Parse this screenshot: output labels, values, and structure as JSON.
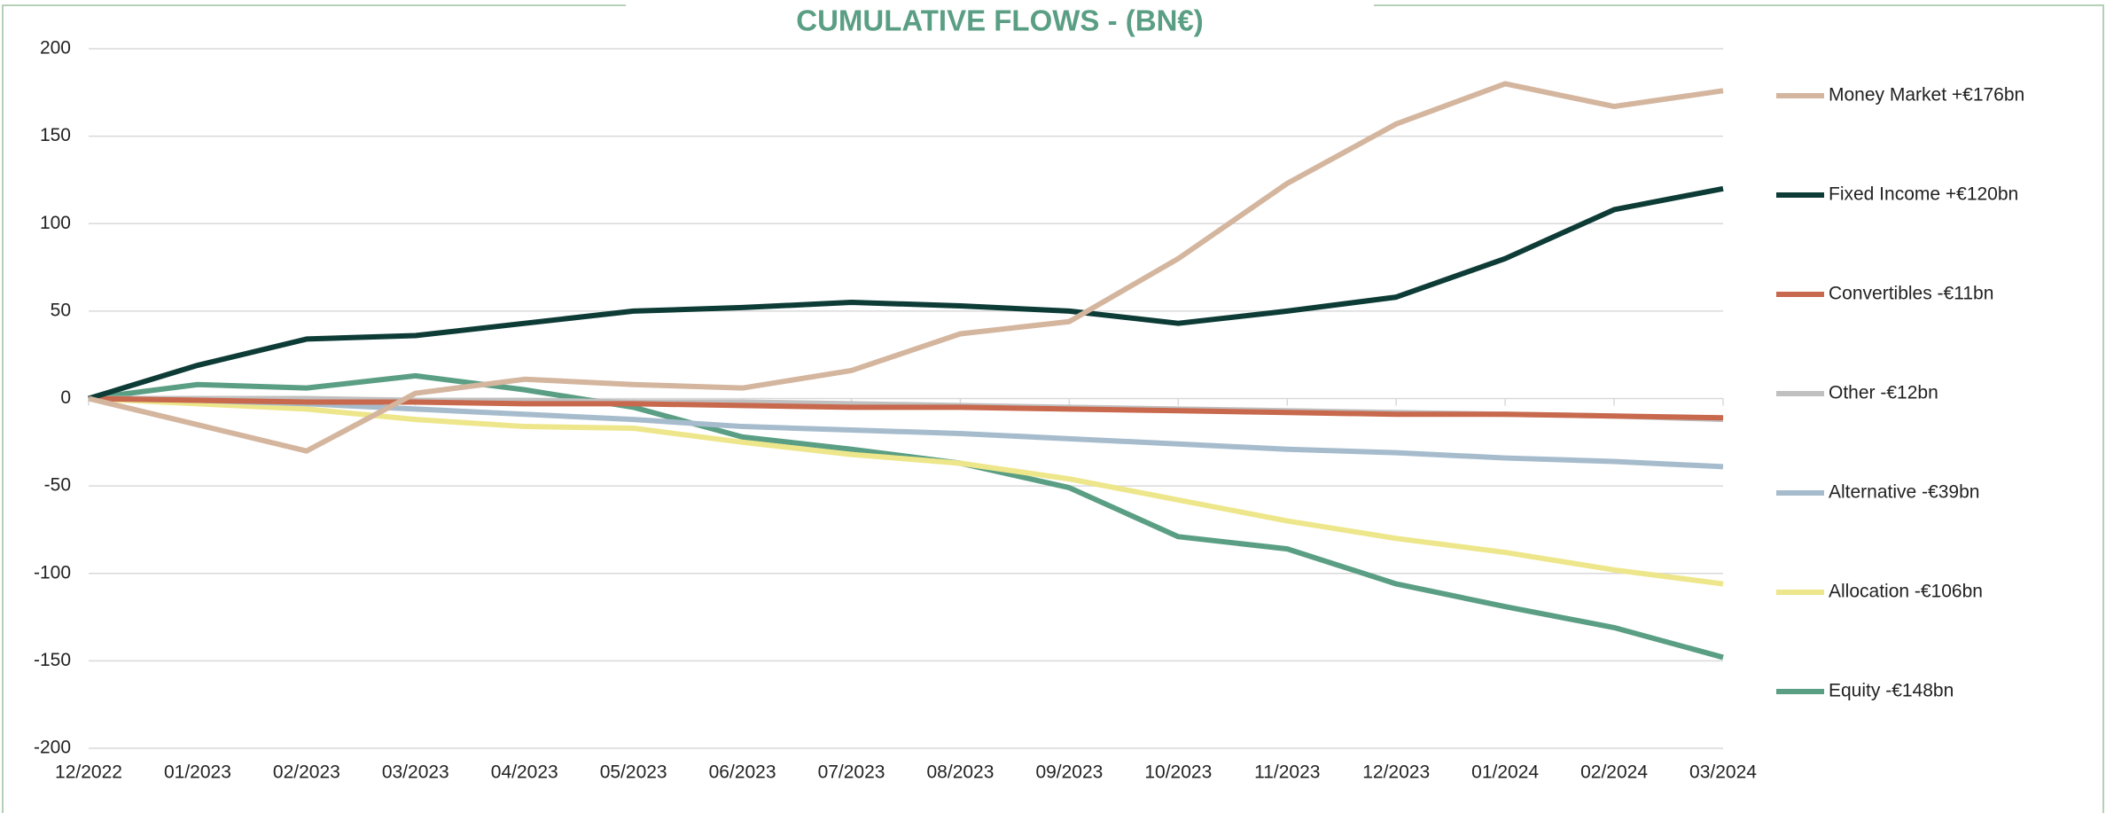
{
  "chart_data": {
    "type": "line",
    "title": "CUMULATIVE FLOWS - (BN€)",
    "categories": [
      "12/2022",
      "01/2023",
      "02/2023",
      "03/2023",
      "04/2023",
      "05/2023",
      "06/2023",
      "07/2023",
      "08/2023",
      "09/2023",
      "10/2023",
      "11/2023",
      "12/2023",
      "01/2024",
      "02/2024",
      "03/2024"
    ],
    "series": [
      {
        "name": "Money Market +€176bn",
        "color": "#d4b59e",
        "values": [
          0,
          -15,
          -30,
          3,
          11,
          8,
          6,
          16,
          37,
          44,
          80,
          123,
          157,
          180,
          167,
          176
        ]
      },
      {
        "name": "Fixed Income +€120bn",
        "color": "#0d3b36",
        "values": [
          0,
          19,
          34,
          36,
          43,
          50,
          52,
          55,
          53,
          50,
          43,
          50,
          58,
          80,
          108,
          120
        ]
      },
      {
        "name": "Convertibles -€11bn",
        "color": "#c8684d",
        "values": [
          0,
          -1,
          -2,
          -2,
          -3,
          -3,
          -4,
          -5,
          -5,
          -6,
          -7,
          -8,
          -9,
          -9,
          -10,
          -11
        ]
      },
      {
        "name": "Other -€12bn",
        "color": "#c0c0c0",
        "values": [
          0,
          0,
          0,
          -1,
          -1,
          -2,
          -2,
          -3,
          -4,
          -5,
          -6,
          -7,
          -8,
          -9,
          -10,
          -12
        ]
      },
      {
        "name": "Alternative -€39bn",
        "color": "#a6bccd",
        "values": [
          0,
          -1,
          -3,
          -6,
          -9,
          -12,
          -16,
          -18,
          -20,
          -23,
          -26,
          -29,
          -31,
          -34,
          -36,
          -39
        ]
      },
      {
        "name": "Allocation -€106bn",
        "color": "#eee68a",
        "values": [
          0,
          -3,
          -6,
          -12,
          -16,
          -17,
          -25,
          -32,
          -37,
          -46,
          -58,
          -70,
          -80,
          -88,
          -98,
          -106
        ]
      },
      {
        "name": "Equity -€148bn",
        "color": "#5a9e84",
        "values": [
          0,
          8,
          6,
          13,
          5,
          -5,
          -22,
          -29,
          -37,
          -51,
          -79,
          -86,
          -106,
          -119,
          -131,
          -148
        ]
      }
    ],
    "ylim": [
      -200,
      200
    ],
    "yticks": [
      200,
      150,
      100,
      50,
      0,
      -50,
      -100,
      -150,
      -200
    ],
    "grid": true,
    "legend": "right"
  }
}
